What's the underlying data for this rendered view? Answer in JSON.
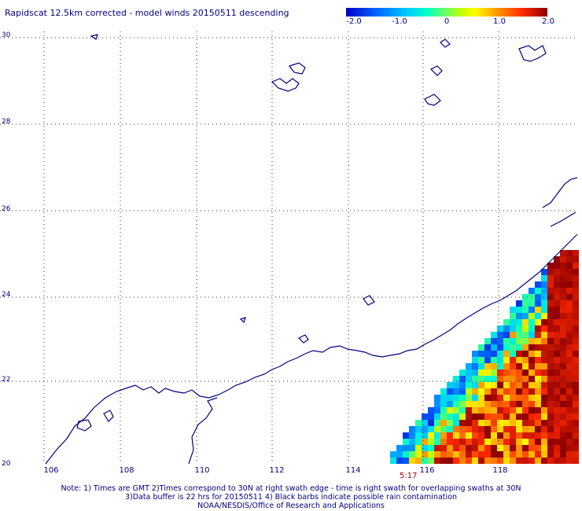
{
  "title": "Rapidscat 12.5km corrected - model winds 20150511 descending",
  "colorbar": {
    "ticks": [
      "-2.0",
      "-1.0",
      "0",
      "1.0",
      "2.0"
    ],
    "min": -2.0,
    "max": 2.0
  },
  "axes": {
    "lat_labels": [
      "30",
      "28",
      "26",
      "24",
      "22",
      "20"
    ],
    "lon_labels": [
      "106",
      "108",
      "110",
      "112",
      "114",
      "116",
      "118"
    ]
  },
  "swath_time": "5:17",
  "notes": [
    "Note: 1) Times are GMT 2)Times correspond to 30N at right swath edge - time is right swath for overlapping swaths at 30N",
    "3)Data buffer is 22 hrs for 20150511 4) Black barbs indicate possible rain contamination",
    "NOAA/NESDIS/Office of Research and Applications"
  ]
}
